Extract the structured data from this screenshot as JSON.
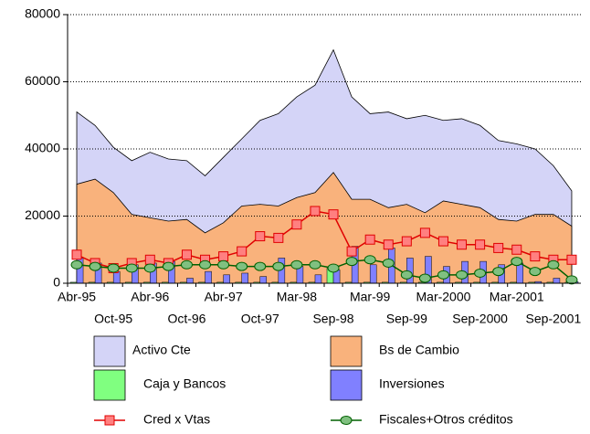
{
  "chart_data": {
    "type": "combo",
    "categories": [
      "Abr-95",
      null,
      "Oct-95",
      null,
      "Abr-96",
      null,
      "Oct-96",
      null,
      "Abr-97",
      null,
      "Oct-97",
      null,
      "Mar-98",
      null,
      "Sep-98",
      null,
      "Mar-99",
      null,
      "Sep-99",
      null,
      "Mar-2000",
      null,
      "Sep-2000",
      null,
      "Mar-2001",
      null,
      "Sep-2001",
      null
    ],
    "series": [
      {
        "name": "Activo Cte",
        "type": "area",
        "color": "#d4d4f7",
        "values": [
          51000,
          47000,
          40500,
          36500,
          39000,
          37000,
          36500,
          32000,
          37500,
          43000,
          48500,
          50500,
          55500,
          59000,
          69500,
          55500,
          50500,
          51000,
          49000,
          50000,
          48500,
          49000,
          47000,
          42500,
          41500,
          40000,
          35000,
          27500
        ]
      },
      {
        "name": "Bs de Cambio",
        "type": "area",
        "color": "#f9b27c",
        "values": [
          29500,
          31000,
          27000,
          20500,
          19500,
          18500,
          19000,
          15000,
          18000,
          23000,
          23500,
          23000,
          25500,
          27000,
          33000,
          25000,
          25000,
          22500,
          23500,
          21000,
          24500,
          23500,
          22500,
          19000,
          18500,
          20500,
          20500,
          17000
        ]
      },
      {
        "name": "Caja y Bancos",
        "type": "bar",
        "color": "#80ff80",
        "values": [
          300,
          300,
          300,
          300,
          300,
          300,
          300,
          300,
          300,
          300,
          300,
          300,
          300,
          300,
          4500,
          300,
          300,
          300,
          300,
          300,
          300,
          300,
          300,
          300,
          300,
          300,
          300,
          300
        ]
      },
      {
        "name": "Inversiones",
        "type": "bar",
        "color": "#8080ff",
        "values": [
          7500,
          6000,
          3500,
          5500,
          6000,
          6500,
          1500,
          3500,
          2500,
          3000,
          2000,
          7500,
          5000,
          2500,
          4000,
          11000,
          5500,
          10500,
          7500,
          8000,
          5000,
          6500,
          6500,
          5500,
          6000,
          500,
          1500,
          500
        ]
      },
      {
        "name": "Cred x Vtas",
        "type": "line",
        "color": "#e00000",
        "marker_color": "#ff8080",
        "marker": "square",
        "values": [
          8500,
          6000,
          4500,
          6000,
          7000,
          6000,
          8500,
          7000,
          8000,
          9500,
          14000,
          13500,
          17500,
          21500,
          20500,
          9500,
          13000,
          11500,
          12500,
          15000,
          12500,
          11500,
          11500,
          10500,
          10000,
          8000,
          7000,
          7000
        ]
      },
      {
        "name": "Fiscales+Otros créditos",
        "type": "line",
        "color": "#006000",
        "marker_color": "#80c080",
        "marker": "circle",
        "values": [
          5500,
          5000,
          4500,
          4500,
          4500,
          5000,
          5500,
          5500,
          5500,
          5000,
          5000,
          5000,
          5500,
          5500,
          4500,
          6500,
          7000,
          6000,
          2500,
          1500,
          2500,
          2500,
          3000,
          3500,
          6500,
          3500,
          5500,
          1000
        ]
      }
    ],
    "ylim": [
      0,
      80000
    ],
    "yticks": [
      0,
      20000,
      40000,
      60000,
      80000
    ],
    "grid": true
  }
}
